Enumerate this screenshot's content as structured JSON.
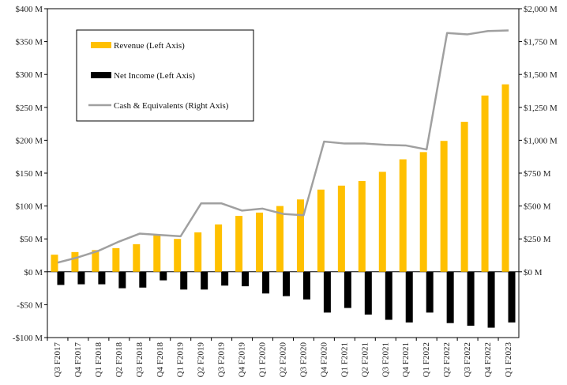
{
  "chart_data": {
    "type": "bar",
    "title": "",
    "xlabel": "",
    "ylabel": "",
    "categories": [
      "Q3 F2017",
      "Q4 F2017",
      "Q1 F2018",
      "Q2 F2018",
      "Q3 F2018",
      "Q4 F2018",
      "Q1 F2019",
      "Q2 F2019",
      "Q3 F2019",
      "Q4 F2019",
      "Q1 F2020",
      "Q2 F2020",
      "Q3 F2020",
      "Q4 F2020",
      "Q1 F2021",
      "Q2 F2021",
      "Q3 F2021",
      "Q4 F2021",
      "Q1 F2022",
      "Q2 F2022",
      "Q3 F2022",
      "Q4 F2022",
      "Q1 F2023"
    ],
    "series": [
      {
        "name": "Revenue (Left Axis)",
        "kind": "bar",
        "axis": "left",
        "color": "#FFC000",
        "values": [
          26,
          30,
          33,
          36,
          42,
          56,
          50,
          60,
          72,
          85,
          90,
          100,
          110,
          125,
          131,
          138,
          152,
          171,
          182,
          199,
          228,
          268,
          285
        ]
      },
      {
        "name": "Net Income (Left Axis)",
        "kind": "bar",
        "axis": "left",
        "color": "#000000",
        "values": [
          -20,
          -19,
          -19,
          -25,
          -24,
          -13,
          -27,
          -27,
          -21,
          -22,
          -33,
          -37,
          -42,
          -62,
          -55,
          -65,
          -73,
          -77,
          -62,
          -78,
          -82,
          -85,
          -77
        ]
      },
      {
        "name": "Cash & Equivalents (Right Axis)",
        "kind": "line",
        "axis": "right",
        "color": "#A0A0A0",
        "values": [
          70,
          110,
          160,
          230,
          290,
          280,
          270,
          520,
          520,
          465,
          480,
          440,
          430,
          990,
          975,
          975,
          965,
          960,
          930,
          1815,
          1805,
          1830,
          1835
        ]
      }
    ],
    "left_axis": {
      "ylim": [
        -100,
        400
      ],
      "ticks": [
        -100,
        -50,
        0,
        50,
        100,
        150,
        200,
        250,
        300,
        350,
        400
      ],
      "tick_labels": [
        "-$100 M",
        "-$50 M",
        "$0 M",
        "$50 M",
        "$100 M",
        "$150 M",
        "$200 M",
        "$250 M",
        "$300 M",
        "$350 M",
        "$400 M"
      ]
    },
    "right_axis": {
      "ylim": [
        -500,
        2000
      ],
      "ticks": [
        0,
        250,
        500,
        750,
        1000,
        1250,
        1500,
        1750,
        2000
      ],
      "tick_labels": [
        "$0 M",
        "$250 M",
        "$500 M",
        "$750 M",
        "$1,000 M",
        "$1,250 M",
        "$1,500 M",
        "$1,750 M",
        "$2,000 M"
      ]
    },
    "grid": false,
    "legend": {
      "placement": "top-left",
      "entries": [
        "Revenue (Left Axis)",
        "Net Income (Left Axis)",
        "Cash & Equivalents (Right Axis)"
      ]
    }
  }
}
